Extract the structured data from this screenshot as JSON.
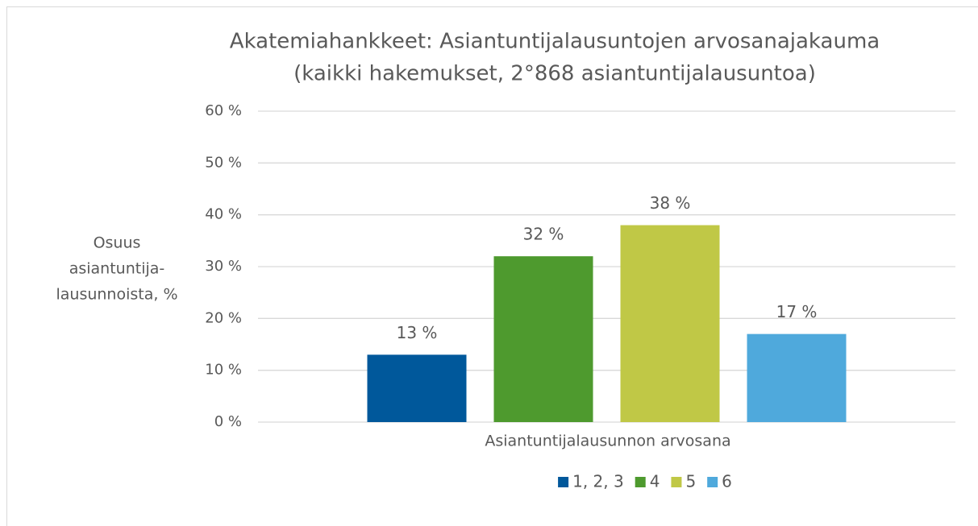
{
  "chart_data": {
    "type": "bar",
    "title": "Akatemiahankkeet: Asiantuntijalausuntojen arvosanajakauma",
    "subtitle": "(kaikki hakemukset, 2°868 asiantuntijalausuntoa)",
    "y_label": [
      "Osuus",
      "asiantuntija-",
      "lausunnoista, %"
    ],
    "x_label": "Asiantuntijalausunnon arvosana",
    "series": [
      {
        "name": "1, 2, 3",
        "color": "#00589b",
        "values": [
          13
        ],
        "value_labels": [
          "13 %"
        ]
      },
      {
        "name": "4",
        "color": "#4e9a2e",
        "values": [
          32
        ],
        "value_labels": [
          "32 %"
        ]
      },
      {
        "name": "5",
        "color": "#c0c846",
        "values": [
          38
        ],
        "value_labels": [
          "38 %"
        ]
      },
      {
        "name": "6",
        "color": "#4fa9dc",
        "values": [
          17
        ],
        "value_labels": [
          "17 %"
        ]
      }
    ],
    "ylim": [
      0,
      60
    ],
    "yticks": [
      {
        "value": 0,
        "label": "0 %"
      },
      {
        "value": 10,
        "label": "10 %"
      },
      {
        "value": 20,
        "label": "20 %"
      },
      {
        "value": 30,
        "label": "30 %"
      },
      {
        "value": 40,
        "label": "40 %"
      },
      {
        "value": 50,
        "label": "50 %"
      },
      {
        "value": 60,
        "label": "60 %"
      }
    ],
    "grid": true,
    "legend": "bottom"
  }
}
